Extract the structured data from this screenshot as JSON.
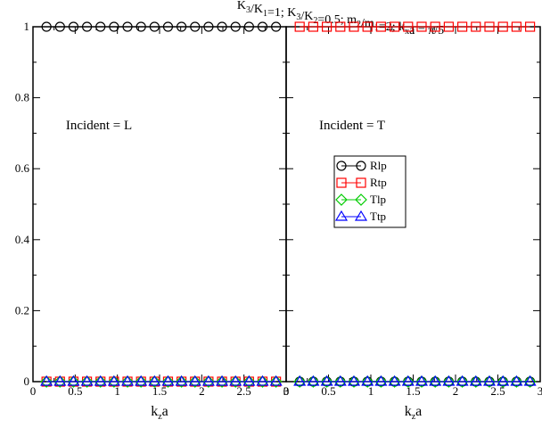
{
  "chart_data": [
    {
      "type": "scatter",
      "panel": "left",
      "annotation": "Incident = L",
      "xlabel_main": "k",
      "xlabel_sub": "z",
      "xlabel_tail": "a",
      "xlim": [
        0,
        3
      ],
      "ylim": [
        0,
        1
      ],
      "xticks": [
        "0",
        "0.5",
        "1",
        "1.5",
        "2",
        "2.5",
        "3"
      ],
      "yticks": [
        "0",
        "0.2",
        "0.4",
        "0.6",
        "0.8",
        "1"
      ],
      "x": [
        0.16,
        0.32,
        0.48,
        0.64,
        0.8,
        0.96,
        1.12,
        1.28,
        1.44,
        1.6,
        1.76,
        1.92,
        2.08,
        2.24,
        2.4,
        2.56,
        2.72,
        2.88
      ],
      "series": [
        {
          "name": "Rlp",
          "marker": "circle",
          "color": "#000000",
          "values": [
            1,
            1,
            1,
            1,
            1,
            1,
            1,
            1,
            1,
            1,
            1,
            1,
            1,
            1,
            1,
            1,
            1,
            1
          ]
        },
        {
          "name": "Rtp",
          "marker": "square",
          "color": "#ff0000",
          "values": [
            0,
            0,
            0,
            0,
            0,
            0,
            0,
            0,
            0,
            0,
            0,
            0,
            0,
            0,
            0,
            0,
            0,
            0
          ]
        },
        {
          "name": "Tlp",
          "marker": "diamond",
          "color": "#00cc00",
          "values": [
            0,
            0,
            0,
            0,
            0,
            0,
            0,
            0,
            0,
            0,
            0,
            0,
            0,
            0,
            0,
            0,
            0,
            0
          ]
        },
        {
          "name": "Ttp",
          "marker": "triangle",
          "color": "#0000ff",
          "values": [
            0,
            0,
            0,
            0,
            0,
            0,
            0,
            0,
            0,
            0,
            0,
            0,
            0,
            0,
            0,
            0,
            0,
            0
          ]
        }
      ]
    },
    {
      "type": "scatter",
      "panel": "right",
      "annotation": "Incident = T",
      "xlabel_main": "k",
      "xlabel_sub": "z",
      "xlabel_tail": "a",
      "xlim": [
        0,
        3
      ],
      "ylim": [
        0,
        1
      ],
      "xticks": [
        "0",
        "0.5",
        "1",
        "1.5",
        "2",
        "2.5",
        "3"
      ],
      "x": [
        0.16,
        0.32,
        0.48,
        0.64,
        0.8,
        0.96,
        1.12,
        1.28,
        1.44,
        1.6,
        1.76,
        1.92,
        2.08,
        2.24,
        2.4,
        2.56,
        2.72,
        2.88
      ],
      "series": [
        {
          "name": "Rlp",
          "marker": "circle",
          "color": "#000000",
          "values": [
            0,
            0,
            0,
            0,
            0,
            0,
            0,
            0,
            0,
            0,
            0,
            0,
            0,
            0,
            0,
            0,
            0,
            0
          ]
        },
        {
          "name": "Rtp",
          "marker": "square",
          "color": "#ff0000",
          "values": [
            1,
            1,
            1,
            1,
            1,
            1,
            1,
            1,
            1,
            1,
            1,
            1,
            1,
            1,
            1,
            1,
            1,
            1
          ]
        },
        {
          "name": "Tlp",
          "marker": "diamond",
          "color": "#00cc00",
          "values": [
            0,
            0,
            0,
            0,
            0,
            0,
            0,
            0,
            0,
            0,
            0,
            0,
            0,
            0,
            0,
            0,
            0,
            0
          ]
        },
        {
          "name": "Ttp",
          "marker": "triangle",
          "color": "#0000ff",
          "values": [
            0,
            0,
            0,
            0,
            0,
            0,
            0,
            0,
            0,
            0,
            0,
            0,
            0,
            0,
            0,
            0,
            0,
            0
          ]
        }
      ],
      "legend": [
        "Rlp",
        "Rtp",
        "Tlp",
        "Ttp"
      ],
      "legend_position": "center"
    }
  ],
  "title_parts": [
    {
      "t": "K",
      "sub": "3"
    },
    {
      "t": "/K",
      "sub": "1"
    },
    {
      "t": "=1;   K",
      "sub": "3"
    },
    {
      "t": "/K",
      "sub": "2"
    },
    {
      "t": "=0.5;   m",
      "sub": "2"
    },
    {
      "t": "/m",
      "sub": "1"
    },
    {
      "t": "=2;  k",
      "sub": "x"
    },
    {
      "t": "a = π/5",
      "sub": ""
    }
  ]
}
